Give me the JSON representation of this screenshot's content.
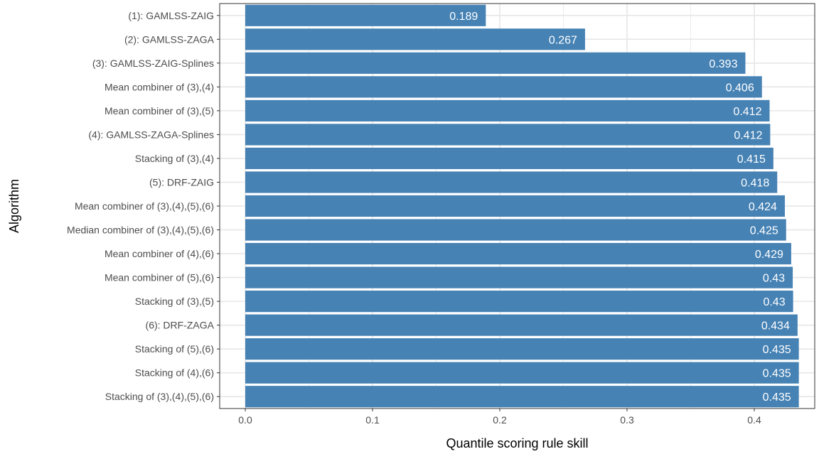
{
  "chart_data": {
    "type": "bar",
    "orientation": "horizontal",
    "title": "",
    "xlabel": "Quantile scoring rule skill",
    "ylabel": "Algorithm",
    "xlim": [
      0,
      0.44
    ],
    "x_ticks": [
      "0.0",
      "0.1",
      "0.2",
      "0.3",
      "0.4"
    ],
    "grid": true,
    "bar_color": "#4682B4",
    "categories": [
      "(1): GAMLSS-ZAIG",
      "(2): GAMLSS-ZAGA",
      "(3): GAMLSS-ZAIG-Splines",
      "Mean combiner of (3),(4)",
      "Mean combiner of (3),(5)",
      "(4): GAMLSS-ZAGA-Splines",
      "Stacking of (3),(4)",
      "(5): DRF-ZAIG",
      "Mean combiner of (3),(4),(5),(6)",
      "Median combiner of (3),(4),(5),(6)",
      "Mean combiner of (4),(6)",
      "Mean combiner of (5),(6)",
      "Stacking of (3),(5)",
      "(6): DRF-ZAGA",
      "Stacking of (5),(6)",
      "Stacking of (4),(6)",
      "Stacking of (3),(4),(5),(6)"
    ],
    "values": [
      0.189,
      0.267,
      0.393,
      0.406,
      0.412,
      0.4125,
      0.415,
      0.418,
      0.424,
      0.425,
      0.429,
      0.4302,
      0.4305,
      0.434,
      0.435,
      0.435,
      0.435
    ],
    "value_labels": [
      "0.189",
      "0.267",
      "0.393",
      "0.406",
      "0.412",
      "0.412",
      "0.415",
      "0.418",
      "0.424",
      "0.425",
      "0.429",
      "0.43",
      "0.43",
      "0.434",
      "0.435",
      "0.435",
      "0.435"
    ]
  }
}
